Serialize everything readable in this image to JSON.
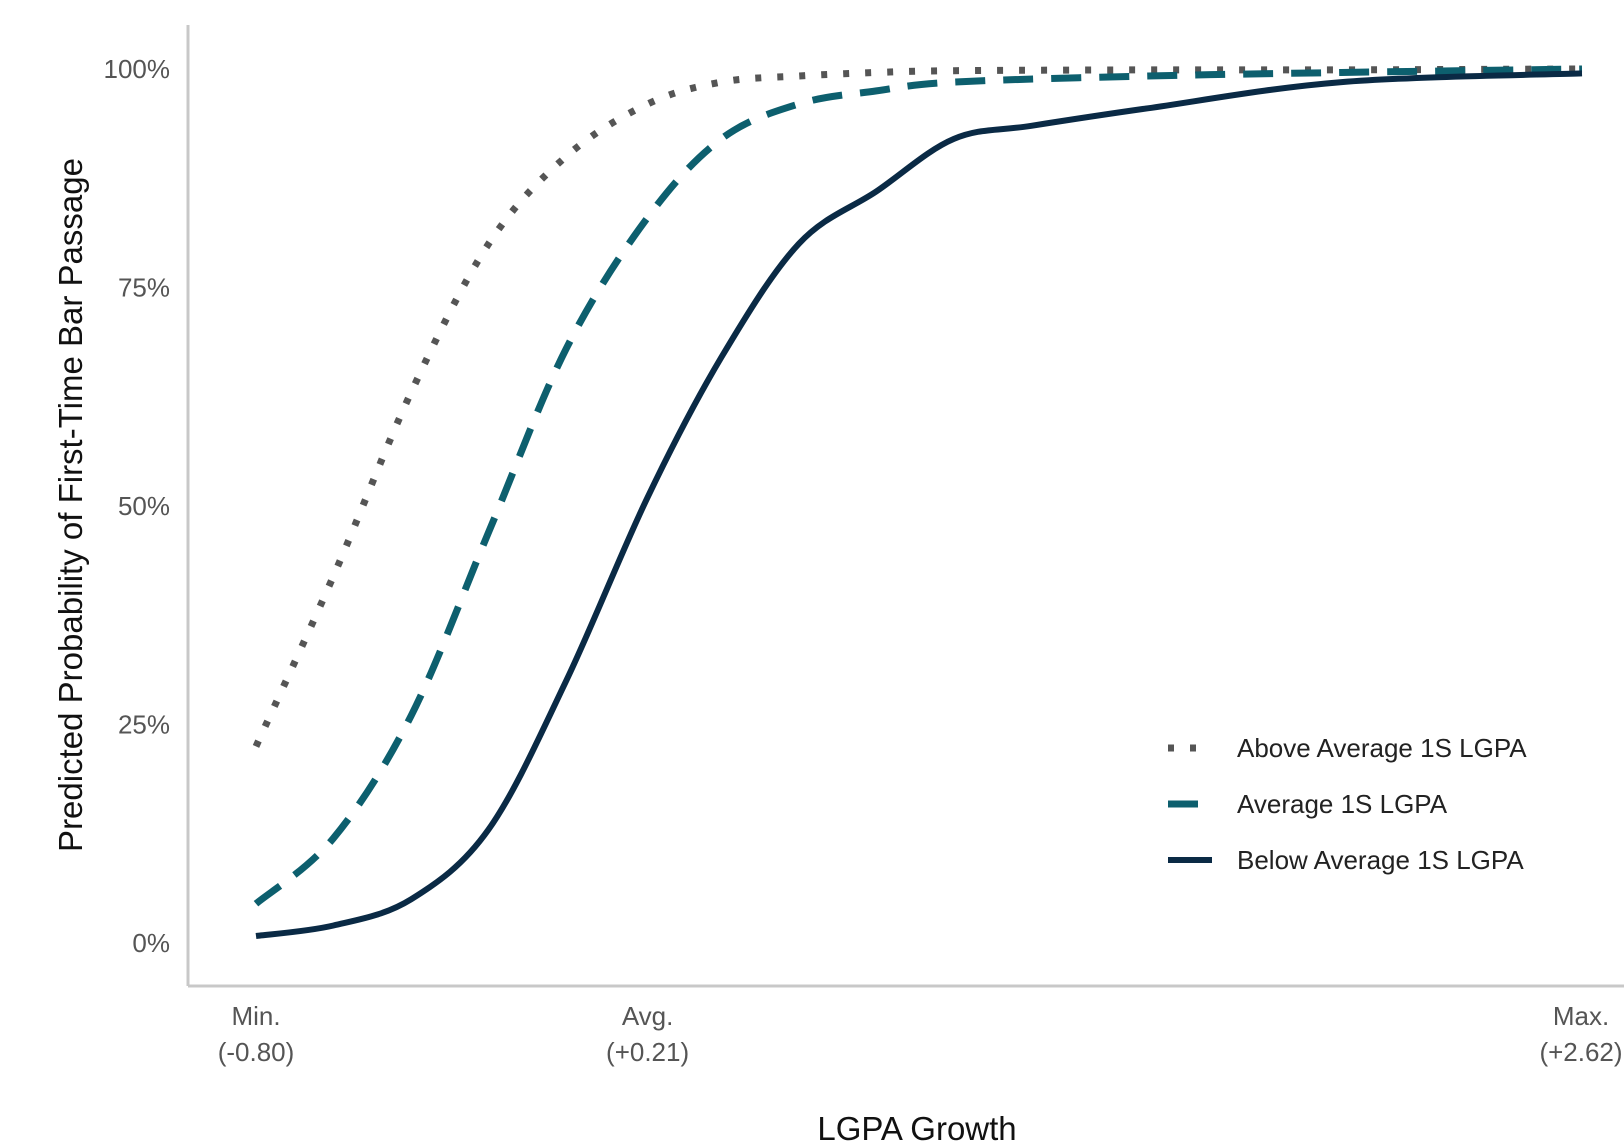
{
  "chart_data": {
    "type": "line",
    "title": "",
    "xlabel": "LGPA Growth",
    "ylabel": "Predicted Probability of First-Time Bar Passage",
    "xlim": [
      -0.8,
      2.62
    ],
    "ylim": [
      0,
      1
    ],
    "x_ticks": [
      {
        "value": -0.8,
        "line1": "Min.",
        "line2": "(-0.80)"
      },
      {
        "value": 0.21,
        "line1": "Avg.",
        "line2": "(+0.21)"
      },
      {
        "value": 2.62,
        "line1": "Max.",
        "line2": "(+2.62)"
      }
    ],
    "y_ticks": [
      {
        "value": 0,
        "label": "0%"
      },
      {
        "value": 0.25,
        "label": "25%"
      },
      {
        "value": 0.5,
        "label": "50%"
      },
      {
        "value": 0.75,
        "label": "75%"
      },
      {
        "value": 1,
        "label": "100%"
      }
    ],
    "grid": false,
    "legend_position": "bottom-right",
    "series": [
      {
        "name": "Above Average 1S LGPA",
        "style": "dotted",
        "color": "#555555",
        "x": [
          -0.8,
          -0.6,
          -0.4,
          -0.2,
          0.0,
          0.21,
          0.4,
          0.6,
          0.8,
          1.0,
          1.5,
          2.0,
          2.62
        ],
        "y": [
          0.225,
          0.42,
          0.63,
          0.8,
          0.9,
          0.96,
          0.985,
          0.992,
          0.996,
          0.998,
          0.999,
          0.999,
          1.0
        ]
      },
      {
        "name": "Average 1S LGPA",
        "style": "dashed",
        "color": "#0d5f6e",
        "x": [
          -0.8,
          -0.6,
          -0.4,
          -0.2,
          0.0,
          0.21,
          0.4,
          0.6,
          0.8,
          1.0,
          1.5,
          2.0,
          2.62
        ],
        "y": [
          0.045,
          0.12,
          0.26,
          0.47,
          0.68,
          0.83,
          0.92,
          0.96,
          0.975,
          0.985,
          0.992,
          0.996,
          1.0
        ]
      },
      {
        "name": "Below Average 1S LGPA",
        "style": "solid",
        "color": "#0a2a45",
        "x": [
          -0.8,
          -0.6,
          -0.4,
          -0.2,
          0.0,
          0.21,
          0.4,
          0.6,
          0.8,
          1.0,
          1.2,
          1.5,
          2.0,
          2.62
        ],
        "y": [
          0.008,
          0.02,
          0.05,
          0.13,
          0.3,
          0.51,
          0.67,
          0.8,
          0.86,
          0.92,
          0.935,
          0.955,
          0.985,
          0.995
        ]
      }
    ]
  }
}
